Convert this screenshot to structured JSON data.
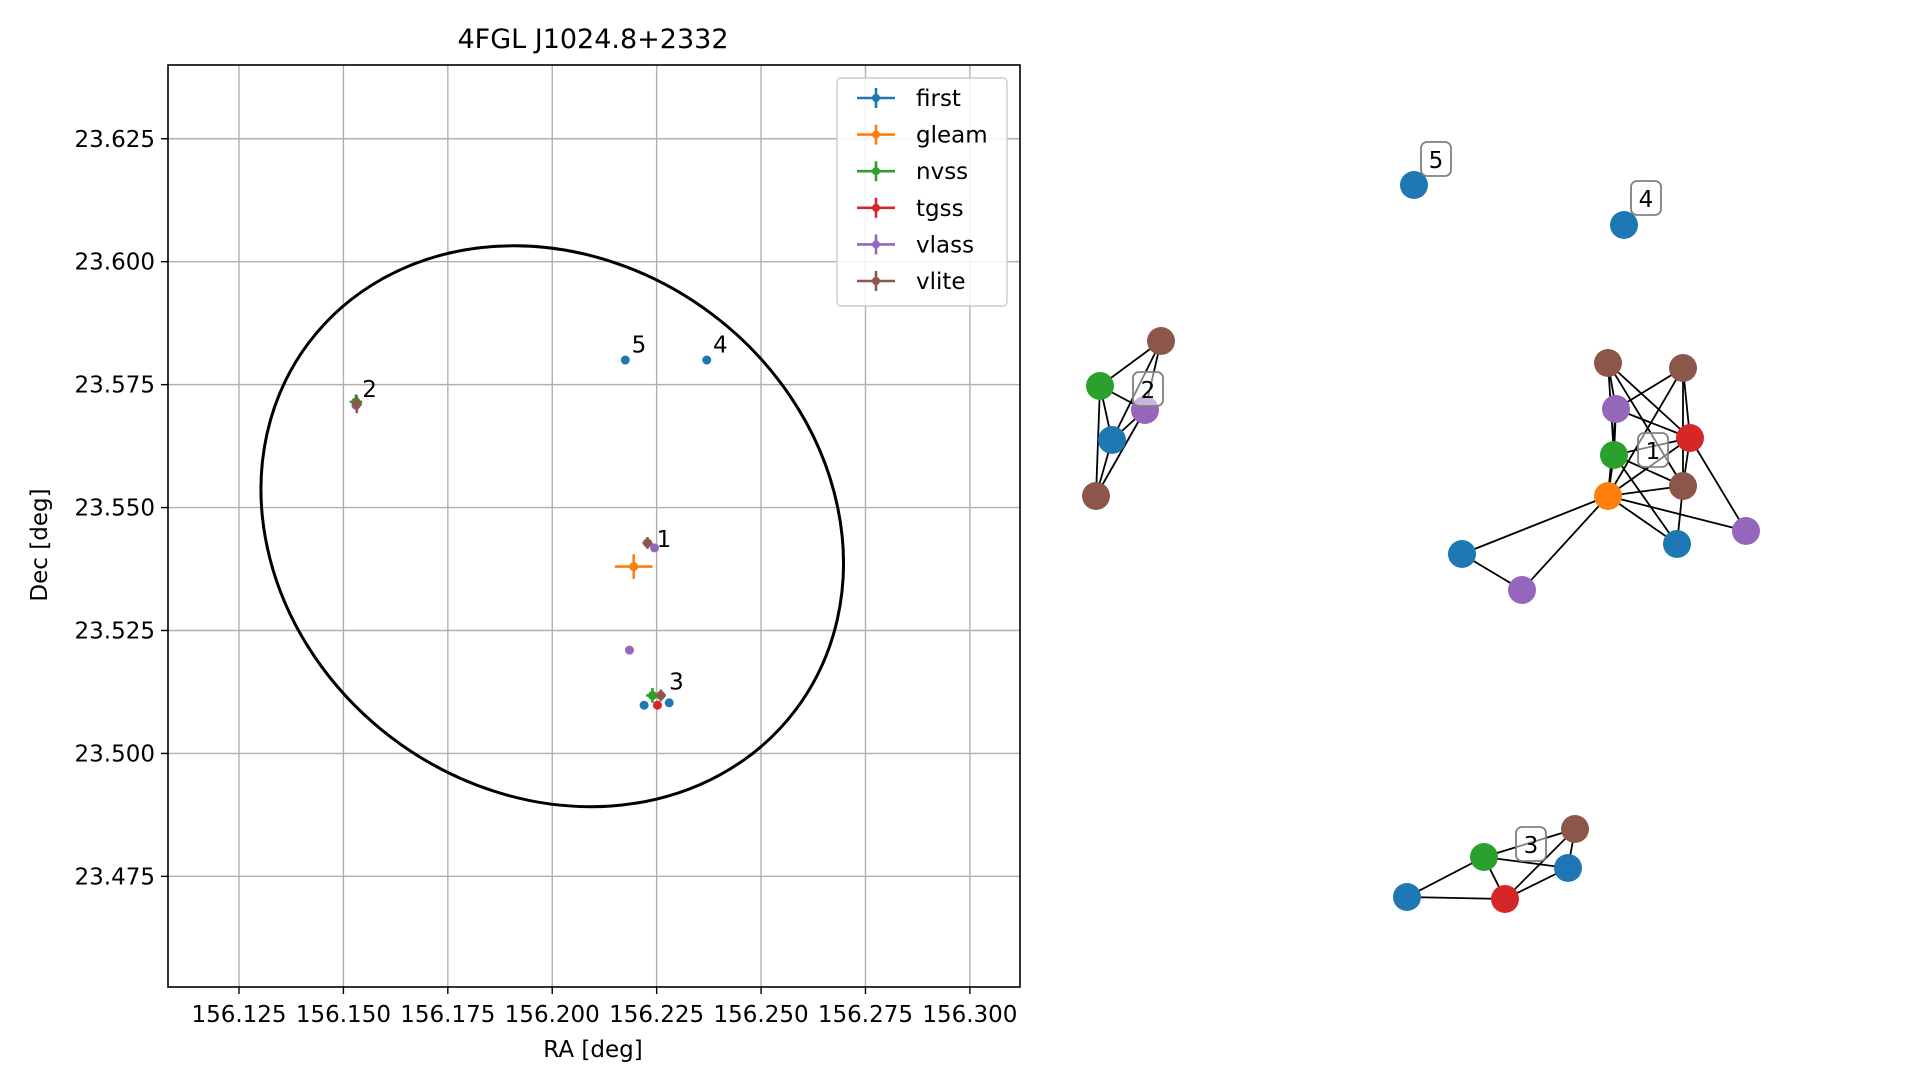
{
  "chart_data": [
    {
      "type": "scatter",
      "title": "4FGL J1024.8+2332",
      "xlabel": "RA [deg]",
      "ylabel": "Dec [deg]",
      "xlim": [
        156.108,
        156.312
      ],
      "ylim": [
        23.4525,
        23.64
      ],
      "xticks": [
        156.125,
        156.15,
        156.175,
        156.2,
        156.225,
        156.25,
        156.275,
        156.3
      ],
      "xtick_labels": [
        "156.125",
        "156.150",
        "156.175",
        "156.200",
        "156.225",
        "156.250",
        "156.275",
        "156.300"
      ],
      "yticks": [
        23.475,
        23.5,
        23.525,
        23.55,
        23.575,
        23.6,
        23.625
      ],
      "ytick_labels": [
        "23.475",
        "23.500",
        "23.525",
        "23.550",
        "23.575",
        "23.600",
        "23.625"
      ],
      "grid": true,
      "legend_position": "top-right",
      "series": [
        {
          "name": "first",
          "color": "#1f77b4",
          "points": [
            {
              "x": 156.2175,
              "y": 23.58,
              "xerr": 0.0006,
              "yerr": 0.0006
            },
            {
              "x": 156.237,
              "y": 23.58,
              "xerr": 0.0006,
              "yerr": 0.0006
            },
            {
              "x": 156.222,
              "y": 23.5098,
              "xerr": 0.0006,
              "yerr": 0.0006
            },
            {
              "x": 156.228,
              "y": 23.5103,
              "xerr": 0.0006,
              "yerr": 0.0006
            }
          ]
        },
        {
          "name": "gleam",
          "color": "#ff7f0e",
          "points": [
            {
              "x": 156.2195,
              "y": 23.538,
              "xerr": 0.0045,
              "yerr": 0.0025
            }
          ]
        },
        {
          "name": "nvss",
          "color": "#2ca02c",
          "points": [
            {
              "x": 156.153,
              "y": 23.5715,
              "xerr": 0.0015,
              "yerr": 0.0015
            },
            {
              "x": 156.224,
              "y": 23.5118,
              "xerr": 0.0015,
              "yerr": 0.0015
            }
          ]
        },
        {
          "name": "tgss",
          "color": "#d62728",
          "points": [
            {
              "x": 156.2252,
              "y": 23.5098,
              "xerr": 0.0008,
              "yerr": 0.0008
            }
          ]
        },
        {
          "name": "vlass",
          "color": "#9467bd",
          "points": [
            {
              "x": 156.153,
              "y": 23.5708,
              "xerr": 0.0004,
              "yerr": 0.0004
            },
            {
              "x": 156.2245,
              "y": 23.5418,
              "xerr": 0.0004,
              "yerr": 0.0004
            },
            {
              "x": 156.2185,
              "y": 23.521,
              "xerr": 0.0004,
              "yerr": 0.0004
            }
          ]
        },
        {
          "name": "vlite",
          "color": "#8c564b",
          "points": [
            {
              "x": 156.1532,
              "y": 23.571,
              "xerr": 0.0012,
              "yerr": 0.0018
            },
            {
              "x": 156.2228,
              "y": 23.5428,
              "xerr": 0.0012,
              "yerr": 0.0012
            },
            {
              "x": 156.226,
              "y": 23.5118,
              "xerr": 0.0012,
              "yerr": 0.0012
            }
          ]
        }
      ],
      "annotations": [
        {
          "text": "1",
          "x": 156.225,
          "y": 23.542
        },
        {
          "text": "2",
          "x": 156.1545,
          "y": 23.5725
        },
        {
          "text": "3",
          "x": 156.228,
          "y": 23.513
        },
        {
          "text": "4",
          "x": 156.2385,
          "y": 23.5815
        },
        {
          "text": "5",
          "x": 156.219,
          "y": 23.5815
        }
      ],
      "ellipse": {
        "center": [
          156.2,
          23.5462
        ],
        "semi_axes": [
          0.073,
          0.054
        ],
        "angle_deg": 37,
        "color": "#000000"
      }
    },
    {
      "type": "network",
      "node_colors": {
        "first": "#1f77b4",
        "gleam": "#ff7f0e",
        "nvss": "#2ca02c",
        "tgss": "#d62728",
        "vlass": "#9467bd",
        "vlite": "#8c564b"
      },
      "clusters": [
        {
          "label": "1",
          "nodes": [
            {
              "id": "c1-vlite-a",
              "survey": "vlite"
            },
            {
              "id": "c1-vlite-b",
              "survey": "vlite"
            },
            {
              "id": "c1-vlass-a",
              "survey": "vlass"
            },
            {
              "id": "c1-tgss",
              "survey": "tgss"
            },
            {
              "id": "c1-nvss",
              "survey": "nvss"
            },
            {
              "id": "c1-gleam",
              "survey": "gleam"
            },
            {
              "id": "c1-vlite-c",
              "survey": "vlite"
            },
            {
              "id": "c1-first-a",
              "survey": "first"
            },
            {
              "id": "c1-vlass-b",
              "survey": "vlass"
            },
            {
              "id": "c1-first-b",
              "survey": "first"
            },
            {
              "id": "c1-vlass-c",
              "survey": "vlass"
            }
          ],
          "edges": [
            [
              "c1-vlite-a",
              "c1-vlass-a"
            ],
            [
              "c1-vlite-a",
              "c1-nvss"
            ],
            [
              "c1-vlite-a",
              "c1-tgss"
            ],
            [
              "c1-vlite-a",
              "c1-vlite-c"
            ],
            [
              "c1-vlite-b",
              "c1-vlass-a"
            ],
            [
              "c1-vlite-b",
              "c1-tgss"
            ],
            [
              "c1-vlite-b",
              "c1-gleam"
            ],
            [
              "c1-vlite-b",
              "c1-vlite-c"
            ],
            [
              "c1-vlass-a",
              "c1-tgss"
            ],
            [
              "c1-vlass-a",
              "c1-nvss"
            ],
            [
              "c1-vlass-a",
              "c1-gleam"
            ],
            [
              "c1-tgss",
              "c1-nvss"
            ],
            [
              "c1-tgss",
              "c1-gleam"
            ],
            [
              "c1-tgss",
              "c1-vlite-c"
            ],
            [
              "c1-tgss",
              "c1-vlass-c"
            ],
            [
              "c1-nvss",
              "c1-gleam"
            ],
            [
              "c1-nvss",
              "c1-vlite-c"
            ],
            [
              "c1-nvss",
              "c1-first-b"
            ],
            [
              "c1-gleam",
              "c1-vlite-c"
            ],
            [
              "c1-gleam",
              "c1-first-b"
            ],
            [
              "c1-gleam",
              "c1-vlass-c"
            ],
            [
              "c1-gleam",
              "c1-first-a"
            ],
            [
              "c1-gleam",
              "c1-vlass-b"
            ],
            [
              "c1-vlite-c",
              "c1-first-b"
            ],
            [
              "c1-first-a",
              "c1-vlass-b"
            ]
          ]
        },
        {
          "label": "2",
          "nodes": [
            {
              "id": "c2-vlite-a",
              "survey": "vlite"
            },
            {
              "id": "c2-nvss",
              "survey": "nvss"
            },
            {
              "id": "c2-vlass",
              "survey": "vlass"
            },
            {
              "id": "c2-first",
              "survey": "first"
            },
            {
              "id": "c2-vlite-b",
              "survey": "vlite"
            }
          ],
          "edges": [
            [
              "c2-vlite-a",
              "c2-nvss"
            ],
            [
              "c2-vlite-a",
              "c2-first"
            ],
            [
              "c2-vlite-a",
              "c2-vlass"
            ],
            [
              "c2-nvss",
              "c2-first"
            ],
            [
              "c2-nvss",
              "c2-vlass"
            ],
            [
              "c2-nvss",
              "c2-vlite-b"
            ],
            [
              "c2-vlass",
              "c2-first"
            ],
            [
              "c2-vlass",
              "c2-vlite-b"
            ],
            [
              "c2-first",
              "c2-vlite-b"
            ]
          ]
        },
        {
          "label": "3",
          "nodes": [
            {
              "id": "c3-vlite",
              "survey": "vlite"
            },
            {
              "id": "c3-nvss",
              "survey": "nvss"
            },
            {
              "id": "c3-first-a",
              "survey": "first"
            },
            {
              "id": "c3-first-b",
              "survey": "first"
            },
            {
              "id": "c3-tgss",
              "survey": "tgss"
            }
          ],
          "edges": [
            [
              "c3-vlite",
              "c3-nvss"
            ],
            [
              "c3-vlite",
              "c3-first-a"
            ],
            [
              "c3-vlite",
              "c3-tgss"
            ],
            [
              "c3-nvss",
              "c3-first-a"
            ],
            [
              "c3-nvss",
              "c3-tgss"
            ],
            [
              "c3-nvss",
              "c3-first-b"
            ],
            [
              "c3-first-a",
              "c3-tgss"
            ],
            [
              "c3-first-b",
              "c3-tgss"
            ]
          ]
        },
        {
          "label": "4",
          "nodes": [
            {
              "id": "c4-first",
              "survey": "first"
            }
          ],
          "edges": []
        },
        {
          "label": "5",
          "nodes": [
            {
              "id": "c5-first",
              "survey": "first"
            }
          ],
          "edges": []
        }
      ]
    }
  ]
}
